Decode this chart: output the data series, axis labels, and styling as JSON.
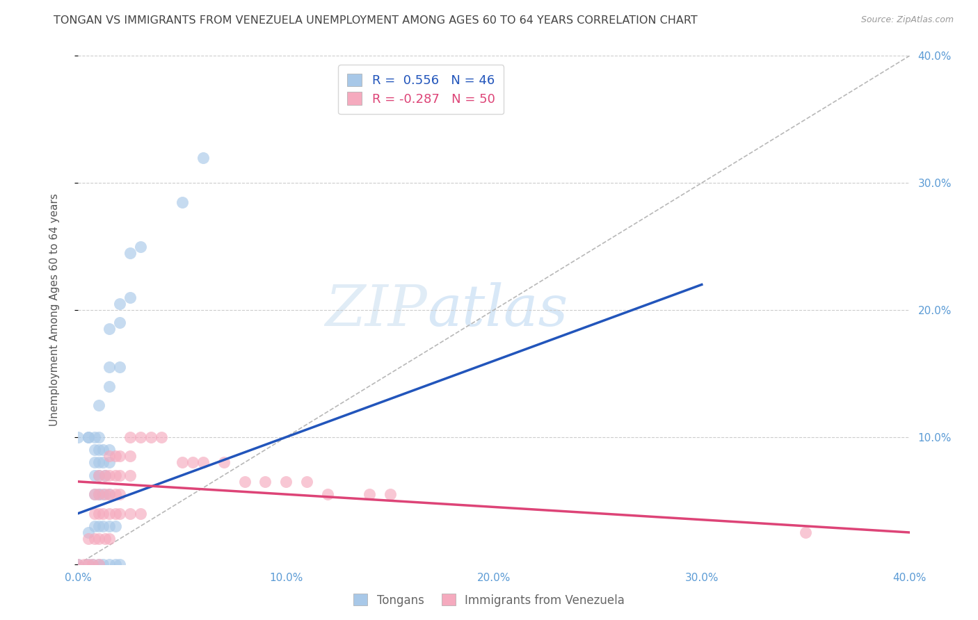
{
  "title": "TONGAN VS IMMIGRANTS FROM VENEZUELA UNEMPLOYMENT AMONG AGES 60 TO 64 YEARS CORRELATION CHART",
  "source": "Source: ZipAtlas.com",
  "ylabel": "Unemployment Among Ages 60 to 64 years",
  "xlim": [
    0.0,
    0.4
  ],
  "ylim": [
    0.0,
    0.4
  ],
  "xtick_labels": [
    "0.0%",
    "",
    "10.0%",
    "",
    "20.0%",
    "",
    "30.0%",
    "",
    "40.0%"
  ],
  "xtick_vals": [
    0.0,
    0.05,
    0.1,
    0.15,
    0.2,
    0.25,
    0.3,
    0.35,
    0.4
  ],
  "right_ytick_labels": [
    "10.0%",
    "20.0%",
    "30.0%",
    "40.0%"
  ],
  "right_ytick_vals": [
    0.1,
    0.2,
    0.3,
    0.4
  ],
  "tongan_color": "#a8c8e8",
  "venezuela_color": "#f5aabe",
  "tongan_line_color": "#2255bb",
  "venezuela_line_color": "#dd4477",
  "diagonal_color": "#b8b8b8",
  "R_tongan": 0.556,
  "N_tongan": 46,
  "R_venezuela": -0.287,
  "N_venezuela": 50,
  "watermark_zip": "ZIP",
  "watermark_atlas": "atlas",
  "tongan_scatter_x": [
    0.0,
    0.005,
    0.007,
    0.01,
    0.012,
    0.015,
    0.018,
    0.02,
    0.005,
    0.008,
    0.01,
    0.012,
    0.015,
    0.018,
    0.008,
    0.01,
    0.012,
    0.015,
    0.008,
    0.01,
    0.013,
    0.008,
    0.01,
    0.012,
    0.015,
    0.008,
    0.01,
    0.012,
    0.015,
    0.005,
    0.008,
    0.01,
    0.0,
    0.005,
    0.01,
    0.015,
    0.015,
    0.02,
    0.015,
    0.02,
    0.02,
    0.025,
    0.025,
    0.03,
    0.05,
    0.06
  ],
  "tongan_scatter_y": [
    0.0,
    0.0,
    0.0,
    0.0,
    0.0,
    0.0,
    0.0,
    0.0,
    0.025,
    0.03,
    0.03,
    0.03,
    0.03,
    0.03,
    0.055,
    0.055,
    0.055,
    0.055,
    0.07,
    0.07,
    0.07,
    0.08,
    0.08,
    0.08,
    0.08,
    0.09,
    0.09,
    0.09,
    0.09,
    0.1,
    0.1,
    0.1,
    0.1,
    0.1,
    0.125,
    0.14,
    0.155,
    0.155,
    0.185,
    0.19,
    0.205,
    0.21,
    0.245,
    0.25,
    0.285,
    0.32
  ],
  "venezuela_scatter_x": [
    0.0,
    0.003,
    0.005,
    0.007,
    0.01,
    0.005,
    0.008,
    0.01,
    0.013,
    0.015,
    0.008,
    0.01,
    0.012,
    0.015,
    0.018,
    0.02,
    0.025,
    0.03,
    0.008,
    0.01,
    0.013,
    0.015,
    0.018,
    0.02,
    0.01,
    0.013,
    0.015,
    0.018,
    0.02,
    0.025,
    0.015,
    0.018,
    0.02,
    0.025,
    0.025,
    0.03,
    0.035,
    0.04,
    0.05,
    0.055,
    0.06,
    0.07,
    0.08,
    0.09,
    0.1,
    0.11,
    0.12,
    0.14,
    0.15,
    0.35
  ],
  "venezuela_scatter_y": [
    0.0,
    0.0,
    0.0,
    0.0,
    0.0,
    0.02,
    0.02,
    0.02,
    0.02,
    0.02,
    0.04,
    0.04,
    0.04,
    0.04,
    0.04,
    0.04,
    0.04,
    0.04,
    0.055,
    0.055,
    0.055,
    0.055,
    0.055,
    0.055,
    0.07,
    0.07,
    0.07,
    0.07,
    0.07,
    0.07,
    0.085,
    0.085,
    0.085,
    0.085,
    0.1,
    0.1,
    0.1,
    0.1,
    0.08,
    0.08,
    0.08,
    0.08,
    0.065,
    0.065,
    0.065,
    0.065,
    0.055,
    0.055,
    0.055,
    0.025
  ],
  "tongan_line_x": [
    0.0,
    0.3
  ],
  "tongan_line_y": [
    0.04,
    0.22
  ],
  "venezuela_line_x": [
    0.0,
    0.4
  ],
  "venezuela_line_y": [
    0.065,
    0.025
  ]
}
